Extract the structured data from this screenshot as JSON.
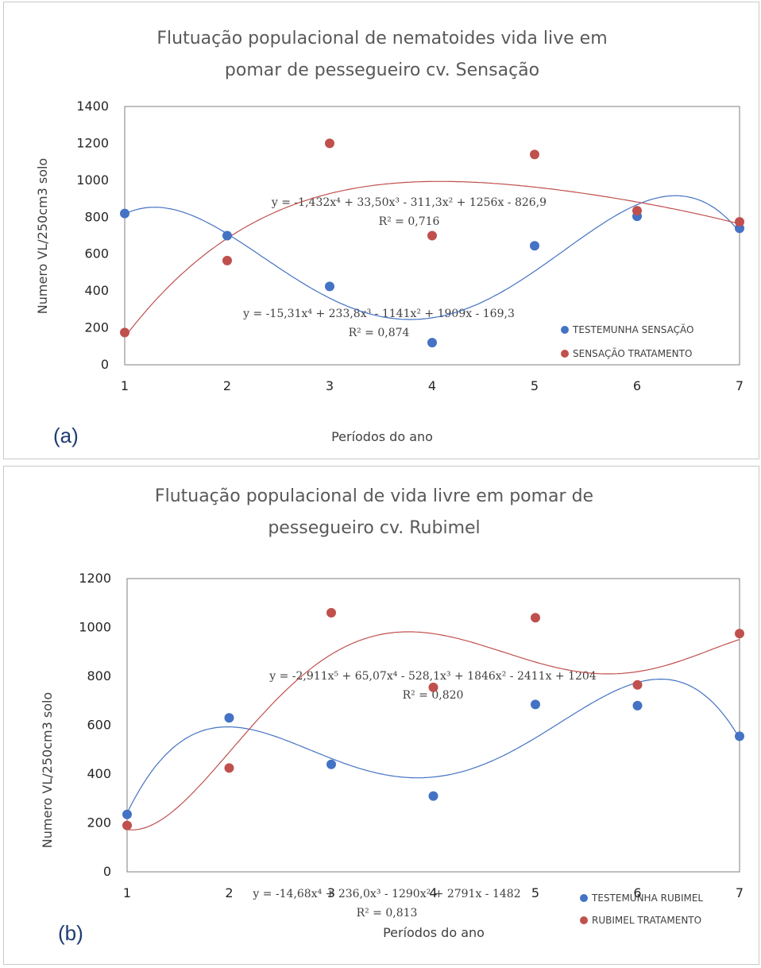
{
  "colors": {
    "series1": "#4472c4",
    "series2": "#c0504d",
    "axis": "#7f7f7f",
    "text": "#595959"
  },
  "chart_data": [
    {
      "type": "scatter",
      "panel_label": "(a)",
      "title_lines": [
        "Flutuação populacional  de nematoides vida live em",
        "pomar de pessegueiro cv. Sensação"
      ],
      "xlabel": "Períodos do ano",
      "ylabel": "Numero VL/250cm3 solo",
      "xlim": [
        1,
        7
      ],
      "ylim": [
        0,
        1400
      ],
      "xticks": [
        1,
        2,
        3,
        4,
        5,
        6,
        7
      ],
      "yticks": [
        0,
        200,
        400,
        600,
        800,
        1000,
        1200,
        1400
      ],
      "x": [
        1,
        2,
        3,
        4,
        5,
        6,
        7
      ],
      "series": [
        {
          "name": "TESTEMUNHA SENSAÇÃO",
          "values": [
            820,
            700,
            425,
            120,
            645,
            805,
            740
          ],
          "trend_coefficients": [
            -169.3,
            1909,
            -1141,
            233.8,
            -15.31
          ],
          "equation": "y = -15,31x⁴ + 233,8x³ - 1141x² + 1909x - 169,3",
          "r2": "R² = 0,874"
        },
        {
          "name": "SENSAÇÃO TRATAMENTO",
          "values": [
            175,
            565,
            1200,
            700,
            1140,
            835,
            775
          ],
          "trend_coefficients": [
            -826.9,
            1256,
            -311.3,
            33.5,
            -1.432
          ],
          "equation": "y = -1,432x⁴ + 33,50x³ - 311,3x² + 1256x - 826,9",
          "r2": "R² = 0,716"
        }
      ]
    },
    {
      "type": "scatter",
      "panel_label": "(b)",
      "title_lines": [
        "Flutuação populacional  de vida livre em pomar de",
        "pessegueiro cv. Rubimel"
      ],
      "xlabel": "Períodos do ano",
      "ylabel": "Numero VL/250cm3 solo",
      "xlim": [
        1,
        7
      ],
      "ylim": [
        0,
        1200
      ],
      "xticks": [
        1,
        2,
        3,
        4,
        5,
        6,
        7
      ],
      "yticks": [
        0,
        200,
        400,
        600,
        800,
        1000,
        1200
      ],
      "x": [
        1,
        2,
        3,
        4,
        5,
        6,
        7
      ],
      "series": [
        {
          "name": "TESTEMUNHA RUBIMEL",
          "values": [
            235,
            630,
            440,
            310,
            685,
            680,
            555
          ],
          "trend_coefficients": [
            -1482,
            2791,
            -1290,
            236.0,
            -14.68
          ],
          "equation": "y = -14,68x⁴ + 236,0x³ - 1290x² + 2791x - 1482",
          "r2": "R² = 0,813"
        },
        {
          "name": "RUBIMEL TRATAMENTO",
          "values": [
            190,
            425,
            1060,
            755,
            1040,
            765,
            975
          ],
          "trend_coefficients": [
            1204,
            -2411,
            1846,
            -528.1,
            65.07,
            -2.911
          ],
          "equation": "y = -2,911x⁵ + 65,07x⁴ - 528,1x³ + 1846x² - 2411x + 1204",
          "r2": "R² = 0,820"
        }
      ]
    }
  ]
}
